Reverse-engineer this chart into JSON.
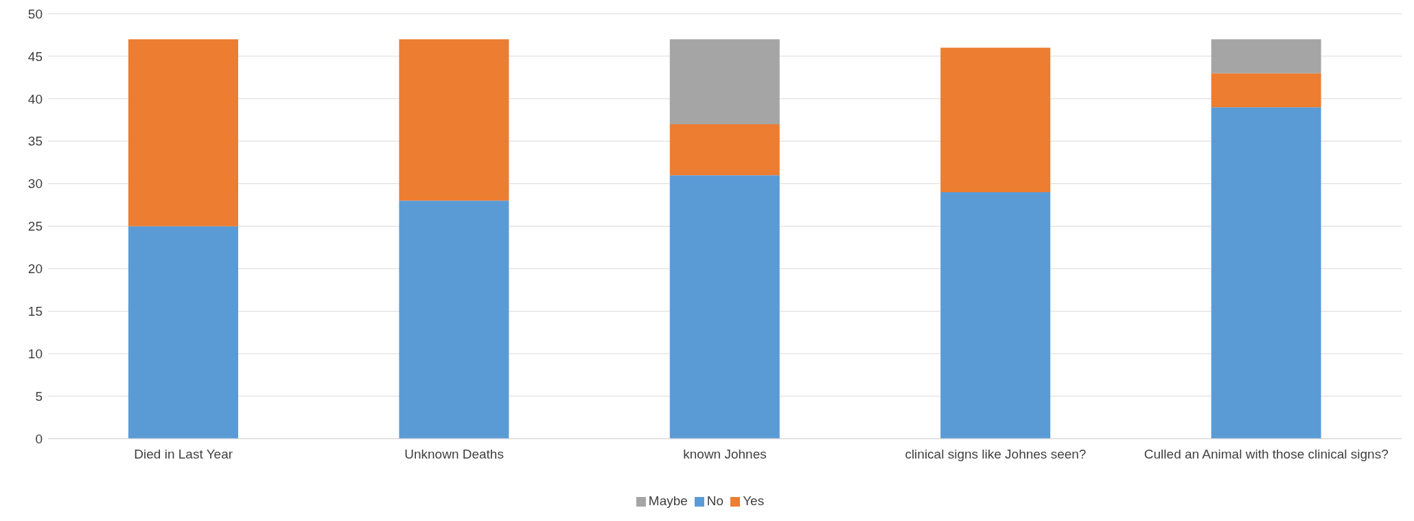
{
  "chart_data": {
    "type": "bar",
    "stacked": true,
    "categories": [
      "Died in Last Year",
      "Unknown Deaths",
      "known Johnes",
      "clinical signs like Johnes seen?",
      "Culled an Animal with those clinical signs?"
    ],
    "series": [
      {
        "name": "No",
        "color": "#5b9bd5",
        "values": [
          25,
          28,
          31,
          29,
          39
        ]
      },
      {
        "name": "Yes",
        "color": "#ed7d31",
        "values": [
          22,
          19,
          6,
          17,
          4
        ]
      },
      {
        "name": "Maybe",
        "color": "#a5a5a5",
        "values": [
          null,
          null,
          10,
          null,
          4
        ]
      }
    ],
    "ylim": [
      0,
      50
    ],
    "yticks": [
      0,
      5,
      10,
      15,
      20,
      25,
      30,
      35,
      40,
      45,
      50
    ],
    "grid": "y",
    "legend": "bottom"
  }
}
